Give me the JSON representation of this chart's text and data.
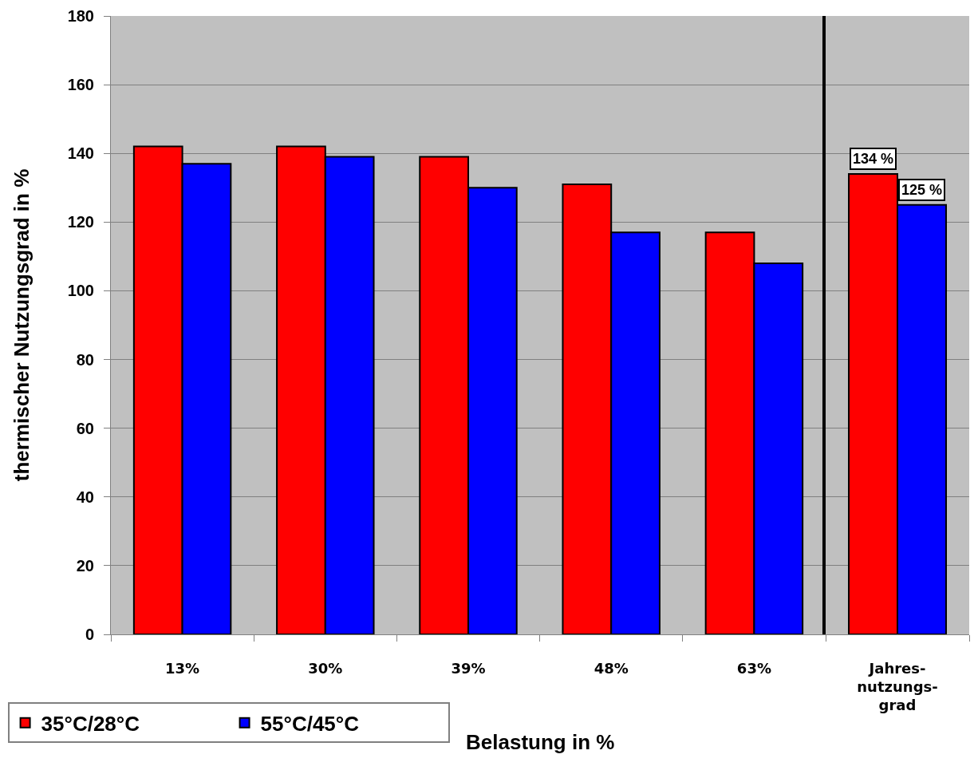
{
  "chart_data": [
    {
      "type": "bar",
      "xlabel": "Belastung in %",
      "ylabel": "thermischer Nutzungsgrad in %",
      "categories": [
        "13%",
        "30%",
        "39%",
        "48%",
        "63%"
      ],
      "series": [
        {
          "name": "35°C/28°C",
          "color": "#ff0000",
          "values": [
            142,
            142,
            139,
            131,
            117
          ]
        },
        {
          "name": "55°C/45°C",
          "color": "#0000ff",
          "values": [
            137,
            139,
            130,
            117,
            108
          ]
        }
      ],
      "ylim": [
        0,
        180
      ],
      "yticks": [
        0,
        20,
        40,
        60,
        80,
        100,
        120,
        140,
        160,
        180
      ],
      "grid": "y",
      "legend": "bottom left"
    },
    {
      "type": "bar",
      "categories": [
        "Jahres-nutzungs-grad"
      ],
      "series": [
        {
          "color": "#ff0000",
          "values": [
            134
          ],
          "value_labels": [
            "134 %"
          ]
        },
        {
          "color": "#0000ff",
          "values": [
            125
          ],
          "value_labels": [
            "125 %"
          ]
        }
      ],
      "ylim": [
        0,
        180
      ],
      "yticks": [
        0,
        20,
        40,
        60,
        80,
        100,
        120,
        140,
        160,
        180
      ],
      "grid": "y",
      "tick_labels": "x"
    }
  ]
}
